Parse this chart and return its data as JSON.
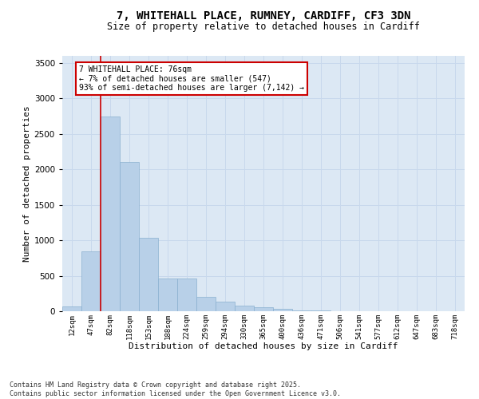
{
  "title_line1": "7, WHITEHALL PLACE, RUMNEY, CARDIFF, CF3 3DN",
  "title_line2": "Size of property relative to detached houses in Cardiff",
  "xlabel": "Distribution of detached houses by size in Cardiff",
  "ylabel": "Number of detached properties",
  "categories": [
    "12sqm",
    "47sqm",
    "82sqm",
    "118sqm",
    "153sqm",
    "188sqm",
    "224sqm",
    "259sqm",
    "294sqm",
    "330sqm",
    "365sqm",
    "400sqm",
    "436sqm",
    "471sqm",
    "506sqm",
    "541sqm",
    "577sqm",
    "612sqm",
    "647sqm",
    "683sqm",
    "718sqm"
  ],
  "values": [
    70,
    840,
    2750,
    2100,
    1040,
    460,
    460,
    200,
    130,
    80,
    55,
    30,
    15,
    10,
    5,
    3,
    2,
    1,
    1,
    0,
    0
  ],
  "bar_color": "#b8d0e8",
  "bar_edge_color": "#8ab0d0",
  "vline_color": "#cc0000",
  "annotation_text": "7 WHITEHALL PLACE: 76sqm\n← 7% of detached houses are smaller (547)\n93% of semi-detached houses are larger (7,142) →",
  "annotation_box_edge_color": "#cc0000",
  "ylim_max": 3600,
  "yticks": [
    0,
    500,
    1000,
    1500,
    2000,
    2500,
    3000,
    3500
  ],
  "grid_color": "#c8d8ec",
  "bg_color": "#dce8f4",
  "footer_line1": "Contains HM Land Registry data © Crown copyright and database right 2025.",
  "footer_line2": "Contains public sector information licensed under the Open Government Licence v3.0."
}
